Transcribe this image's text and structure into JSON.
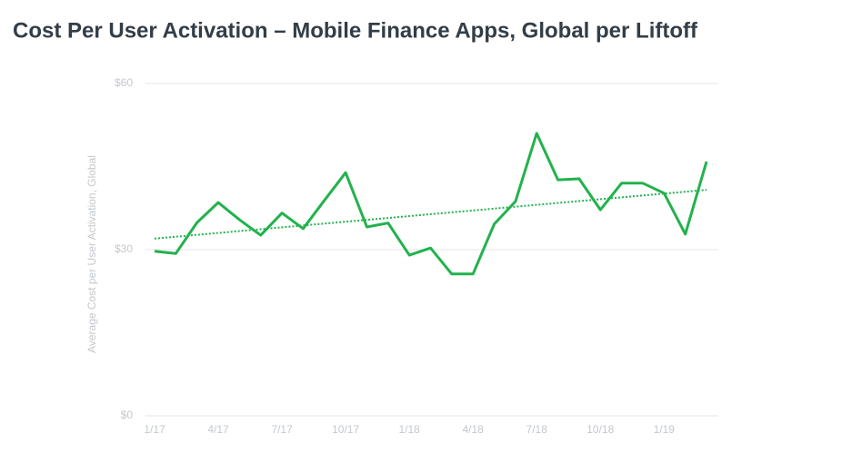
{
  "chart_data": {
    "type": "line",
    "title": "Cost Per User Activation – Mobile Finance Apps, Global per Liftoff",
    "y_label": "Average Cost per User Activation, Global",
    "categories": [
      "1/17",
      null,
      null,
      "4/17",
      null,
      null,
      "7/17",
      null,
      null,
      "10/17",
      null,
      null,
      "1/18",
      null,
      null,
      "4/18",
      null,
      null,
      "7/18",
      null,
      null,
      "10/18",
      null,
      null,
      "1/19",
      null,
      null
    ],
    "series": [
      {
        "color": "#22b24c",
        "values": [
          29.7,
          29.3,
          34.9,
          38.5,
          35.4,
          32.6,
          36.6,
          33.8,
          38.9,
          43.9,
          34.1,
          34.8,
          29.0,
          30.3,
          25.6,
          25.6,
          34.6,
          38.7,
          51.0,
          42.6,
          42.8,
          37.2,
          42.0,
          42.0,
          40.2,
          32.8,
          45.9
        ]
      }
    ],
    "trend": {
      "color": "#22b24c",
      "values": [
        32.0,
        40.8
      ]
    },
    "ylim": [
      0,
      60
    ],
    "yticks": [
      {
        "value": 0,
        "label": "$0"
      },
      {
        "value": 30,
        "label": "$30"
      },
      {
        "value": 60,
        "label": "$60"
      }
    ],
    "grid": true
  }
}
